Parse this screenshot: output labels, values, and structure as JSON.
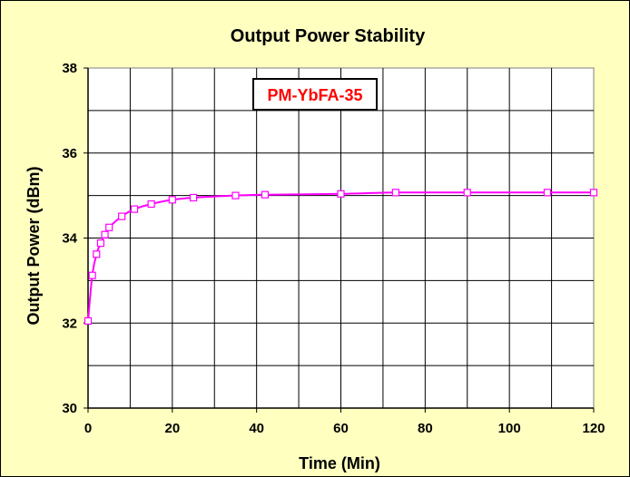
{
  "chart_data": {
    "type": "line",
    "title": "Output Power Stability",
    "xlabel": "Time (Min)",
    "ylabel": "Output Power (dBm)",
    "xlim": [
      0,
      120
    ],
    "ylim": [
      30,
      38
    ],
    "xticks": [
      0,
      20,
      40,
      60,
      80,
      100,
      120
    ],
    "yticks": [
      30,
      32,
      34,
      36,
      38
    ],
    "grid": true,
    "annotation": "PM-YbFA-35",
    "series": [
      {
        "marker": "open-square",
        "color": "#ff00ff",
        "x": [
          0,
          1,
          2,
          3,
          4,
          5,
          8,
          11,
          15,
          20,
          25,
          35,
          42,
          60,
          73,
          90,
          109,
          120
        ],
        "y": [
          32.05,
          33.12,
          33.62,
          33.88,
          34.08,
          34.25,
          34.51,
          34.68,
          34.8,
          34.9,
          34.95,
          35.0,
          35.02,
          35.04,
          35.07,
          35.07,
          35.07,
          35.07
        ]
      }
    ]
  },
  "colors": {
    "background": "#ffffc0",
    "plot_area": "#ffffff",
    "grid": "#000000",
    "series": "#ff00ff",
    "annotation_text": "#ff0000",
    "annotation_border": "#000000"
  }
}
